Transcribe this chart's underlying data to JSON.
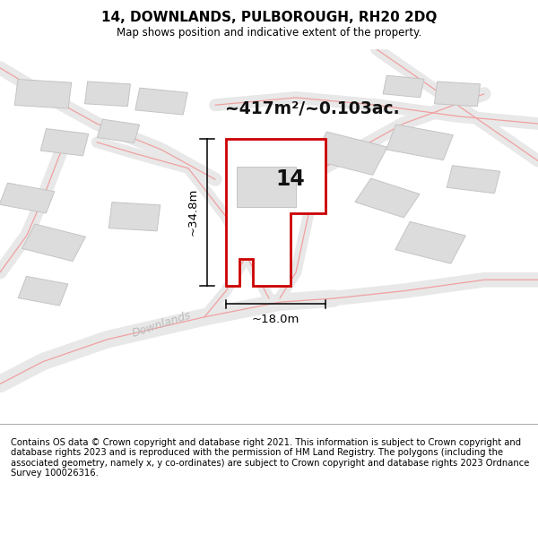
{
  "title_line1": "14, DOWNLANDS, PULBOROUGH, RH20 2DQ",
  "title_line2": "Map shows position and indicative extent of the property.",
  "area_label": "~417m²/~0.103ac.",
  "number_label": "14",
  "dim_height": "~34.8m",
  "dim_width": "~18.0m",
  "road_label": "Downlands",
  "footer_text": "Contains OS data © Crown copyright and database right 2021. This information is subject to Crown copyright and database rights 2023 and is reproduced with the permission of HM Land Registry. The polygons (including the associated geometry, namely x, y co-ordinates) are subject to Crown copyright and database rights 2023 Ordnance Survey 100026316.",
  "bg_color": "#ffffff",
  "map_bg_color": "#f7f7f7",
  "road_fill_color": "#e8e8e8",
  "road_line_color": "#f0a0a0",
  "building_fill": "#dcdcdc",
  "building_edge": "#c4c4c4",
  "main_polygon_color": "#cc0000",
  "title_color": "#000000",
  "footer_color": "#000000"
}
